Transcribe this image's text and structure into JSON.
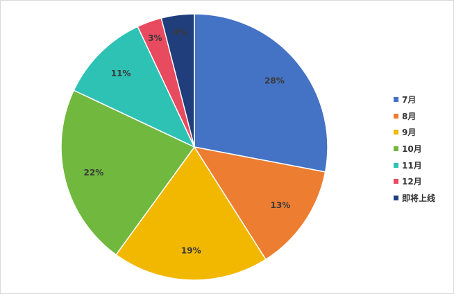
{
  "chart_data": {
    "type": "pie",
    "categories": [
      "7月",
      "8月",
      "9月",
      "10月",
      "11月",
      "12月",
      "即将上线"
    ],
    "values": [
      28,
      13,
      19,
      22,
      11,
      3,
      4
    ],
    "data_labels": [
      "28%",
      "13%",
      "19%",
      "22%",
      "11%",
      "3%",
      "4%"
    ],
    "colors": [
      "#4472C4",
      "#ED7D31",
      "#F2B800",
      "#70B83E",
      "#2EC2B5",
      "#E84A5F",
      "#203E7C"
    ],
    "legend_position": "right",
    "start_angle": "top, clockwise"
  }
}
